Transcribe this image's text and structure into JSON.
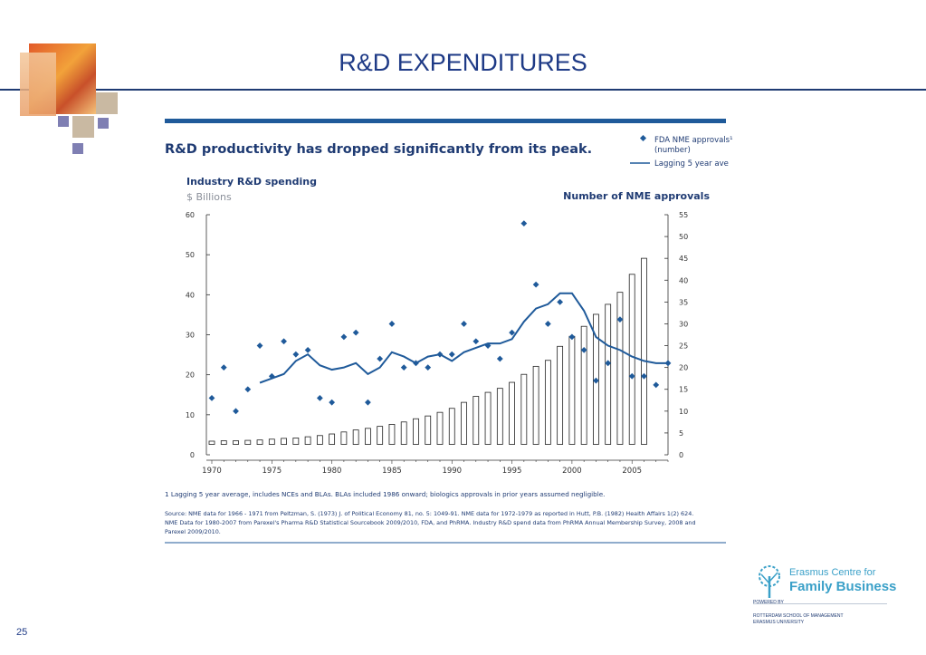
{
  "slide": {
    "title": "R&D EXPENDITURES",
    "page_number": "25"
  },
  "figure": {
    "headline": "R&D productivity has dropped significantly from its peak.",
    "left_axis_title": "Industry R&D spending",
    "left_axis_unit": "$ Billions",
    "right_axis_title": "Number of NME approvals",
    "legend": {
      "series1_line1": "FDA NME approvals¹",
      "series1_line2": "(number)",
      "series2": "Lagging 5 year ave"
    },
    "footnote": "1 Lagging 5 year average, includes NCEs and BLAs. BLAs included 1986 onward; biologics approvals in prior years assumed negligible.",
    "source_line1": "Source: NME data for 1966 - 1971 from Peltzman, S. (1973) J. of Political Economy 81, no. 5: 1049-91. NME data for 1972-1979 as reported in Hutt, P.B. (1982) Health Affairs 1(2) 624.",
    "source_line2": "NME Data for 1980-2007 from Parexel's Pharma R&D Statistical Sourcebook 2009/2010, FDA, and PhRMA. Industry R&D spend data from PhRMA Annual Membership Survey, 2008 and",
    "source_line3": "Parexel 2009/2010."
  },
  "branding": {
    "org_line1": "Erasmus Centre for",
    "org_line2": "Family Business",
    "powered_by": "POWERED BY",
    "school_line1": "ROTTERDAM SCHOOL OF MANAGEMENT",
    "school_line2": "ERASMUS UNIVERSITY",
    "accent_color": "#3aa0c8"
  },
  "colors": {
    "chart_blue": "#1f5a9a",
    "title_blue": "#1e3a86"
  },
  "chart_data": {
    "type": "bar",
    "x_ticks": [
      1970,
      1975,
      1980,
      1985,
      1990,
      1995,
      2000,
      2005
    ],
    "xlim": [
      1970,
      2008
    ],
    "left_ylim": [
      0,
      60
    ],
    "left_ticks": [
      0,
      10,
      20,
      30,
      40,
      50,
      60
    ],
    "right_ylim": [
      0,
      55
    ],
    "right_ticks": [
      0,
      5,
      10,
      15,
      20,
      25,
      30,
      35,
      40,
      45,
      50,
      55
    ],
    "grid": false,
    "legend_position": "top-right",
    "series": [
      {
        "name": "Industry R&D spending",
        "type": "bar",
        "axis": "left",
        "x": [
          1970,
          1971,
          1972,
          1973,
          1974,
          1975,
          1976,
          1977,
          1978,
          1979,
          1980,
          1981,
          1982,
          1983,
          1984,
          1985,
          1986,
          1987,
          1988,
          1989,
          1990,
          1991,
          1992,
          1993,
          1994,
          1995,
          1996,
          1997,
          1998,
          1999,
          2000,
          2001,
          2002,
          2003,
          2004,
          2005,
          2006
        ],
        "values": [
          0.8,
          0.9,
          0.9,
          1.0,
          1.1,
          1.3,
          1.5,
          1.6,
          1.9,
          2.2,
          2.6,
          3.1,
          3.6,
          4.0,
          4.5,
          5.0,
          5.6,
          6.4,
          7.1,
          8.0,
          9.0,
          10.5,
          12.0,
          13.0,
          14.0,
          15.5,
          17.5,
          19.5,
          21.0,
          24.5,
          27.0,
          29.5,
          32.5,
          35.0,
          38.0,
          42.5,
          46.5
        ]
      },
      {
        "name": "FDA NME approvals¹",
        "type": "scatter",
        "axis": "right",
        "x": [
          1970,
          1971,
          1972,
          1973,
          1974,
          1975,
          1976,
          1977,
          1978,
          1979,
          1980,
          1981,
          1982,
          1983,
          1984,
          1985,
          1986,
          1987,
          1988,
          1989,
          1990,
          1991,
          1992,
          1993,
          1994,
          1995,
          1996,
          1997,
          1998,
          1999,
          2000,
          2001,
          2002,
          2003,
          2004,
          2005,
          2006,
          2007,
          2008
        ],
        "values": [
          13,
          20,
          10,
          15,
          25,
          18,
          26,
          23,
          24,
          13,
          12,
          27,
          28,
          12,
          22,
          30,
          20,
          21,
          20,
          23,
          23,
          30,
          26,
          25,
          22,
          28,
          53,
          39,
          30,
          35,
          27,
          24,
          17,
          21,
          31,
          18,
          18,
          16,
          21
        ]
      },
      {
        "name": "Lagging 5 year ave",
        "type": "line",
        "axis": "right",
        "x": [
          1974,
          1975,
          1976,
          1977,
          1978,
          1979,
          1980,
          1981,
          1982,
          1983,
          1984,
          1985,
          1986,
          1987,
          1988,
          1989,
          1990,
          1991,
          1992,
          1993,
          1994,
          1995,
          1996,
          1997,
          1998,
          1999,
          2000,
          2001,
          2002,
          2003,
          2004,
          2005,
          2006,
          2007,
          2008
        ],
        "values": [
          16.5,
          17.5,
          18.5,
          21.5,
          23,
          20.5,
          19.5,
          20,
          21,
          18.5,
          20,
          23.5,
          22.5,
          21,
          22.5,
          23,
          21.5,
          23.5,
          24.5,
          25.5,
          25.5,
          26.5,
          30.5,
          33.5,
          34.5,
          37,
          37,
          33,
          27,
          25,
          24,
          22.5,
          21.5,
          21,
          21
        ]
      }
    ]
  }
}
